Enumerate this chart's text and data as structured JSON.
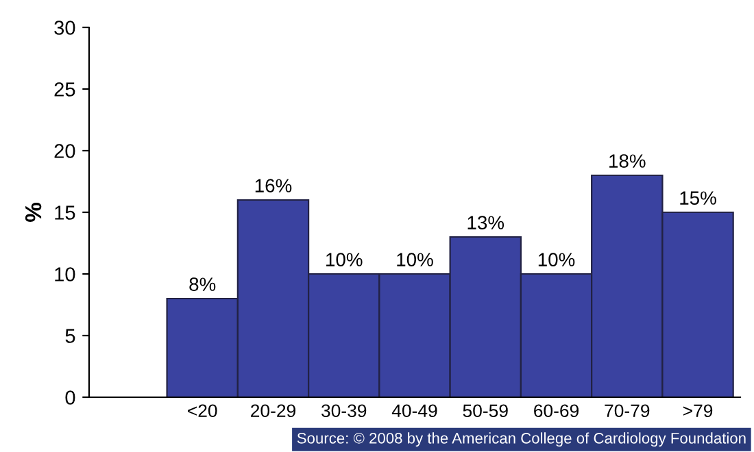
{
  "chart_data": {
    "type": "bar",
    "ylabel": "%",
    "categories": [
      "<20",
      "20-29",
      "30-39",
      "40-49",
      "50-59",
      "60-69",
      "70-79",
      ">79"
    ],
    "values": [
      8,
      16,
      10,
      10,
      13,
      10,
      18,
      15
    ],
    "value_labels": [
      "8%",
      "16%",
      "10%",
      "10%",
      "13%",
      "10%",
      "18%",
      "15%"
    ],
    "color": "#3a42a0",
    "ylim": [
      0,
      30
    ],
    "yticks": [
      0,
      5,
      10,
      15,
      20,
      25,
      30
    ],
    "grid": false,
    "legend": false,
    "annotations": [
      "Source: © 2008 by the American College of Cardiology Foundation"
    ]
  }
}
